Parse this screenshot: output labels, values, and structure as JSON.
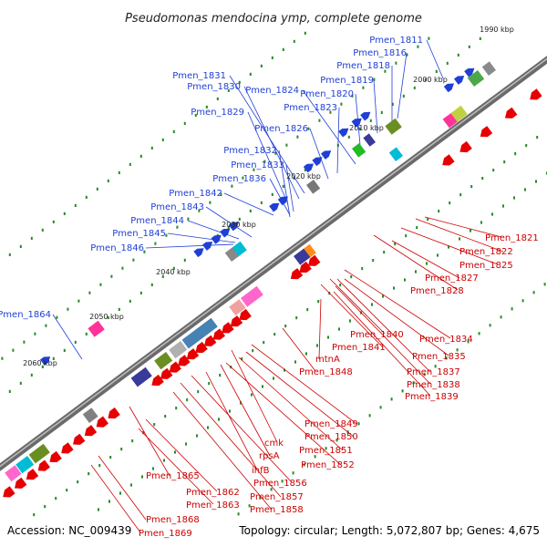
{
  "title": "Pseudomonas mendocina ymp, complete genome",
  "footer": {
    "accession": "Accession: NC_009439",
    "summary": "Topology: circular; Length: 5,072,807 bp; Genes: 4,675"
  },
  "colors": {
    "backbone": "#808080",
    "forward_gene": "#1f3fd6",
    "reverse_gene": "#e60000",
    "label_forward": "#1f3fd6",
    "label_reverse": "#cc0000",
    "tick": "#2a8a2a"
  },
  "kbp_markers": [
    "1990 kbp",
    "2000 kbp",
    "2010 kbp",
    "2020 kbp",
    "2030 kbp",
    "2040 kbp",
    "2050 kbp",
    "2060 kbp"
  ],
  "upper_labels": [
    "Pmen_1811",
    "Pmen_1816",
    "Pmen_1818",
    "Pmen_1819",
    "Pmen_1820",
    "Pmen_1823",
    "Pmen_1824",
    "Pmen_1826",
    "Pmen_1831",
    "Pmen_1830",
    "Pmen_1829",
    "Pmen_1832",
    "Pmen_1833",
    "Pmen_1836",
    "Pmen_1842",
    "Pmen_1843",
    "Pmen_1844",
    "Pmen_1845",
    "Pmen_1846",
    "Pmen_1864"
  ],
  "lower_labels": [
    "Pmen_1821",
    "Pmen_1822",
    "Pmen_1825",
    "Pmen_1827",
    "Pmen_1828",
    "Pmen_1834",
    "Pmen_1835",
    "Pmen_1840",
    "Pmen_1841",
    "Pmen_1837",
    "Pmen_1838",
    "Pmen_1839",
    "mtnA",
    "Pmen_1848",
    "Pmen_1849",
    "Pmen_1850",
    "cmk",
    "Pmen_1851",
    "rpsA",
    "Pmen_1852",
    "ihfB",
    "Pmen_1856",
    "Pmen_1857",
    "Pmen_1858",
    "Pmen_1865",
    "Pmen_1862",
    "Pmen_1863",
    "Pmen_1868",
    "Pmen_1869"
  ]
}
